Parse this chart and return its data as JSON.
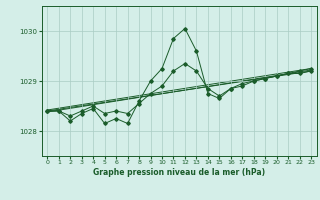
{
  "title": "Graphe pression niveau de la mer (hPa)",
  "background_color": "#d4eee8",
  "grid_color": "#aaccc4",
  "line_color": "#1a5c2a",
  "xlim": [
    -0.5,
    23.5
  ],
  "ylim": [
    1027.5,
    1030.5
  ],
  "yticks": [
    1028,
    1029,
    1030
  ],
  "xticks": [
    0,
    1,
    2,
    3,
    4,
    5,
    6,
    7,
    8,
    9,
    10,
    11,
    12,
    13,
    14,
    15,
    16,
    17,
    18,
    19,
    20,
    21,
    22,
    23
  ],
  "series1": {
    "x": [
      0,
      1,
      2,
      3,
      4,
      5,
      6,
      7,
      8,
      9,
      10,
      11,
      12,
      13,
      14,
      15,
      16,
      17,
      18,
      19,
      20,
      21,
      22,
      23
    ],
    "y": [
      1028.4,
      1028.4,
      1028.2,
      1028.35,
      1028.45,
      1028.15,
      1028.25,
      1028.15,
      1028.6,
      1029.0,
      1029.25,
      1029.85,
      1030.05,
      1029.6,
      1028.75,
      1028.65,
      1028.85,
      1028.9,
      1029.0,
      1029.05,
      1029.1,
      1029.15,
      1029.15,
      1029.2
    ]
  },
  "series2": {
    "x": [
      0,
      1,
      2,
      3,
      4,
      5,
      6,
      7,
      8,
      9,
      10,
      11,
      12,
      13,
      14,
      15,
      16,
      17,
      18,
      19,
      20,
      21,
      22,
      23
    ],
    "y": [
      1028.4,
      1028.4,
      1028.3,
      1028.4,
      1028.5,
      1028.35,
      1028.4,
      1028.35,
      1028.55,
      1028.75,
      1028.9,
      1029.2,
      1029.35,
      1029.2,
      1028.85,
      1028.7,
      1028.85,
      1028.95,
      1029.0,
      1029.05,
      1029.1,
      1029.15,
      1029.2,
      1029.25
    ]
  },
  "series3": {
    "x": [
      0,
      23
    ],
    "y": [
      1028.4,
      1029.2
    ]
  },
  "series4": {
    "x": [
      0,
      23
    ],
    "y": [
      1028.42,
      1029.25
    ]
  },
  "series5": {
    "x": [
      0,
      23
    ],
    "y": [
      1028.38,
      1029.22
    ]
  }
}
